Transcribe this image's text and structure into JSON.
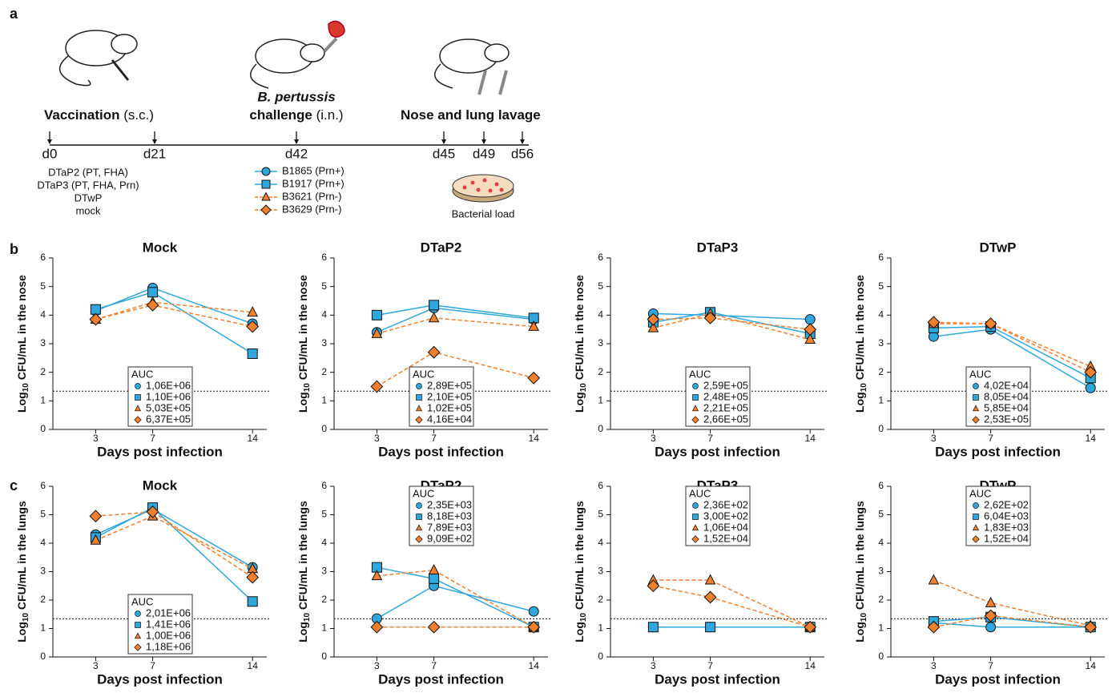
{
  "panels": [
    "a",
    "b",
    "c"
  ],
  "timeline": {
    "days": [
      "d0",
      "d21",
      "d42",
      "d45",
      "d49",
      "d56"
    ],
    "events": [
      {
        "bold": "Vaccination",
        "rest": " (s.c.)"
      },
      {
        "italic": "B. pertussis",
        "bold": "challenge",
        "rest": " (i.n.)"
      },
      {
        "bold": "Nose and lung lavage"
      }
    ],
    "vaccines": [
      "DTaP2 (PT, FHA)",
      "DTaP3 (PT, FHA, Prn)",
      "DTwP",
      "mock"
    ],
    "strains": [
      {
        "name": "B1865 (Prn+)",
        "color": "#2ea7dc",
        "marker": "circle",
        "dashed": false
      },
      {
        "name": "B1917 (Prn+)",
        "color": "#2ea7dc",
        "marker": "square",
        "dashed": false
      },
      {
        "name": "B3621 (Prn-)",
        "color": "#f07f2e",
        "marker": "triangle",
        "dashed": true
      },
      {
        "name": "B3629 (Prn-)",
        "color": "#f07f2e",
        "marker": "diamond",
        "dashed": true
      }
    ],
    "plate_label": "Bacterial load"
  },
  "chart_data": [
    {
      "type": "line",
      "title": "Mock",
      "xlabel": "Days post infection",
      "ylabel": [
        "Log",
        "10",
        " CFU/mL in the nose"
      ],
      "xlim": [
        0,
        15
      ],
      "xticks": [
        3,
        7,
        14
      ],
      "ylim": [
        0,
        6
      ],
      "yticks": [
        0,
        1,
        2,
        3,
        4,
        5,
        6
      ],
      "x": [
        3,
        7,
        14
      ],
      "lod": 1.34,
      "legend_position": "bottom",
      "auc_title": "AUC",
      "auc_labels": [
        "1,06E+06",
        "1,10E+06",
        "5,03E+05",
        "6,37E+05"
      ],
      "series": [
        {
          "color": "#2ea7dc",
          "marker": "circle",
          "dashed": false,
          "values": [
            4.15,
            4.95,
            3.7
          ]
        },
        {
          "color": "#2ea7dc",
          "marker": "square",
          "dashed": false,
          "values": [
            4.2,
            4.8,
            2.65
          ]
        },
        {
          "color": "#f07f2e",
          "marker": "triangle",
          "dashed": true,
          "values": [
            3.85,
            4.45,
            4.1
          ]
        },
        {
          "color": "#f07f2e",
          "marker": "diamond",
          "dashed": true,
          "values": [
            3.85,
            4.35,
            3.6
          ]
        }
      ]
    },
    {
      "type": "line",
      "title": "DTaP2",
      "xlabel": "Days post infection",
      "ylabel": [
        "Log",
        "10",
        " CFU/mL in the nose"
      ],
      "xlim": [
        0,
        15
      ],
      "xticks": [
        3,
        7,
        14
      ],
      "ylim": [
        0,
        6
      ],
      "yticks": [
        0,
        1,
        2,
        3,
        4,
        5,
        6
      ],
      "x": [
        3,
        7,
        14
      ],
      "lod": 1.34,
      "legend_position": "bottom",
      "auc_title": "AUC",
      "auc_labels": [
        "2,89E+05",
        "2,10E+05",
        "1,02E+05",
        "4,16E+04"
      ],
      "series": [
        {
          "color": "#2ea7dc",
          "marker": "circle",
          "dashed": false,
          "values": [
            3.4,
            4.25,
            3.85
          ]
        },
        {
          "color": "#2ea7dc",
          "marker": "square",
          "dashed": false,
          "values": [
            4.0,
            4.35,
            3.9
          ]
        },
        {
          "color": "#f07f2e",
          "marker": "triangle",
          "dashed": true,
          "values": [
            3.35,
            3.9,
            3.6
          ]
        },
        {
          "color": "#f07f2e",
          "marker": "diamond",
          "dashed": true,
          "values": [
            1.5,
            2.7,
            1.8
          ]
        }
      ]
    },
    {
      "type": "line",
      "title": "DTaP3",
      "xlabel": "Days post infection",
      "ylabel": [
        "Log",
        "10",
        " CFU/mL in the nose"
      ],
      "xlim": [
        0,
        15
      ],
      "xticks": [
        3,
        7,
        14
      ],
      "ylim": [
        0,
        6
      ],
      "yticks": [
        0,
        1,
        2,
        3,
        4,
        5,
        6
      ],
      "x": [
        3,
        7,
        14
      ],
      "lod": 1.34,
      "legend_position": "bottom",
      "auc_title": "AUC",
      "auc_labels": [
        "2,59E+05",
        "2,48E+05",
        "2,21E+05",
        "2,66E+05"
      ],
      "series": [
        {
          "color": "#2ea7dc",
          "marker": "circle",
          "dashed": false,
          "values": [
            4.05,
            4.0,
            3.85
          ]
        },
        {
          "color": "#2ea7dc",
          "marker": "square",
          "dashed": false,
          "values": [
            3.75,
            4.1,
            3.35
          ]
        },
        {
          "color": "#f07f2e",
          "marker": "triangle",
          "dashed": true,
          "values": [
            3.55,
            4.05,
            3.15
          ]
        },
        {
          "color": "#f07f2e",
          "marker": "diamond",
          "dashed": true,
          "values": [
            3.85,
            3.9,
            3.5
          ]
        }
      ]
    },
    {
      "type": "line",
      "title": "DTwP",
      "xlabel": "Days post infection",
      "ylabel": [
        "Log",
        "10",
        " CFU/mL in the nose"
      ],
      "xlim": [
        0,
        15
      ],
      "xticks": [
        3,
        7,
        14
      ],
      "ylim": [
        0,
        6
      ],
      "yticks": [
        0,
        1,
        2,
        3,
        4,
        5,
        6
      ],
      "x": [
        3,
        7,
        14
      ],
      "lod": 1.34,
      "legend_position": "bottom",
      "auc_title": "AUC",
      "auc_labels": [
        "4,02E+04",
        "8,05E+04",
        "5,85E+04",
        "2,53E+05"
      ],
      "series": [
        {
          "color": "#2ea7dc",
          "marker": "circle",
          "dashed": false,
          "values": [
            3.25,
            3.5,
            1.45
          ]
        },
        {
          "color": "#2ea7dc",
          "marker": "square",
          "dashed": false,
          "values": [
            3.55,
            3.6,
            1.8
          ]
        },
        {
          "color": "#f07f2e",
          "marker": "triangle",
          "dashed": true,
          "values": [
            3.7,
            3.7,
            2.2
          ]
        },
        {
          "color": "#f07f2e",
          "marker": "diamond",
          "dashed": true,
          "values": [
            3.75,
            3.7,
            2.0
          ]
        }
      ]
    },
    {
      "type": "line",
      "title": "Mock",
      "xlabel": "Days post infection",
      "ylabel": [
        "Log",
        "10",
        " CFU/mL in the lungs"
      ],
      "xlim": [
        0,
        15
      ],
      "xticks": [
        3,
        7,
        14
      ],
      "ylim": [
        0,
        6
      ],
      "yticks": [
        0,
        1,
        2,
        3,
        4,
        5,
        6
      ],
      "x": [
        3,
        7,
        14
      ],
      "lod": 1.34,
      "legend_position": "bottom",
      "auc_title": "AUC",
      "auc_labels": [
        "2,01E+06",
        "1,41E+06",
        "1,00E+06",
        "1,18E+06"
      ],
      "series": [
        {
          "color": "#2ea7dc",
          "marker": "circle",
          "dashed": false,
          "values": [
            4.3,
            5.2,
            3.15
          ]
        },
        {
          "color": "#2ea7dc",
          "marker": "square",
          "dashed": false,
          "values": [
            4.2,
            5.25,
            1.95
          ]
        },
        {
          "color": "#f07f2e",
          "marker": "triangle",
          "dashed": true,
          "values": [
            4.1,
            4.95,
            3.1
          ]
        },
        {
          "color": "#f07f2e",
          "marker": "diamond",
          "dashed": true,
          "values": [
            4.95,
            5.1,
            2.8
          ]
        }
      ]
    },
    {
      "type": "line",
      "title": "DTaP2",
      "xlabel": "Days post infection",
      "ylabel": [
        "Log",
        "10",
        " CFU/mL in the lungs"
      ],
      "xlim": [
        0,
        15
      ],
      "xticks": [
        3,
        7,
        14
      ],
      "ylim": [
        0,
        6
      ],
      "yticks": [
        0,
        1,
        2,
        3,
        4,
        5,
        6
      ],
      "x": [
        3,
        7,
        14
      ],
      "lod": 1.34,
      "legend_position": "top",
      "auc_title": "AUC",
      "auc_labels": [
        "2,35E+03",
        "8,18E+03",
        "7,89E+03",
        "9,09E+02"
      ],
      "series": [
        {
          "color": "#2ea7dc",
          "marker": "circle",
          "dashed": false,
          "values": [
            1.35,
            2.5,
            1.6
          ]
        },
        {
          "color": "#2ea7dc",
          "marker": "square",
          "dashed": false,
          "values": [
            3.15,
            2.75,
            1.05
          ]
        },
        {
          "color": "#f07f2e",
          "marker": "triangle",
          "dashed": true,
          "values": [
            2.85,
            3.05,
            1.05
          ]
        },
        {
          "color": "#f07f2e",
          "marker": "diamond",
          "dashed": true,
          "values": [
            1.05,
            1.05,
            1.05
          ]
        }
      ]
    },
    {
      "type": "line",
      "title": "DTaP3",
      "xlabel": "Days post infection",
      "ylabel": [
        "Log",
        "10",
        " CFU/mL in the lungs"
      ],
      "xlim": [
        0,
        15
      ],
      "xticks": [
        3,
        7,
        14
      ],
      "ylim": [
        0,
        6
      ],
      "yticks": [
        0,
        1,
        2,
        3,
        4,
        5,
        6
      ],
      "x": [
        3,
        7,
        14
      ],
      "lod": 1.34,
      "legend_position": "top",
      "auc_title": "AUC",
      "auc_labels": [
        "2,36E+02",
        "3,00E+02",
        "1,06E+04",
        "1,52E+04"
      ],
      "series": [
        {
          "color": "#2ea7dc",
          "marker": "circle",
          "dashed": false,
          "values": [
            1.05,
            1.05,
            1.05
          ]
        },
        {
          "color": "#2ea7dc",
          "marker": "square",
          "dashed": false,
          "values": [
            1.05,
            1.05,
            1.05
          ]
        },
        {
          "color": "#f07f2e",
          "marker": "triangle",
          "dashed": true,
          "values": [
            2.7,
            2.7,
            1.05
          ]
        },
        {
          "color": "#f07f2e",
          "marker": "diamond",
          "dashed": true,
          "values": [
            2.5,
            2.1,
            1.05
          ]
        }
      ]
    },
    {
      "type": "line",
      "title": "DTwP",
      "xlabel": "Days post infection",
      "ylabel": [
        "Log",
        "10",
        " CFU/mL in the lungs"
      ],
      "xlim": [
        0,
        15
      ],
      "xticks": [
        3,
        7,
        14
      ],
      "ylim": [
        0,
        6
      ],
      "yticks": [
        0,
        1,
        2,
        3,
        4,
        5,
        6
      ],
      "x": [
        3,
        7,
        14
      ],
      "lod": 1.34,
      "legend_position": "top",
      "auc_title": "AUC",
      "auc_labels": [
        "2,62E+02",
        "6,04E+03",
        "1,83E+03",
        "1,52E+04"
      ],
      "series": [
        {
          "color": "#2ea7dc",
          "marker": "circle",
          "dashed": false,
          "values": [
            1.2,
            1.05,
            1.05
          ]
        },
        {
          "color": "#2ea7dc",
          "marker": "square",
          "dashed": false,
          "values": [
            1.25,
            1.4,
            1.05
          ]
        },
        {
          "color": "#f07f2e",
          "marker": "triangle",
          "dashed": true,
          "values": [
            2.7,
            1.9,
            1.1
          ]
        },
        {
          "color": "#f07f2e",
          "marker": "diamond",
          "dashed": true,
          "values": [
            1.05,
            1.45,
            1.05
          ]
        }
      ]
    }
  ]
}
